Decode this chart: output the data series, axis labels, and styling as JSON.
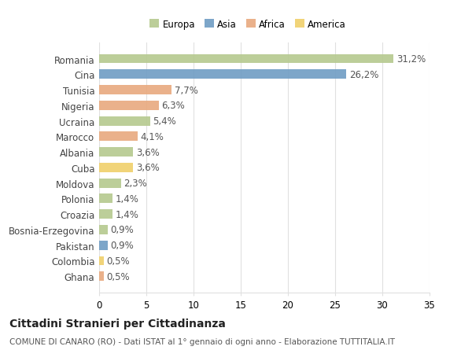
{
  "categories": [
    "Romania",
    "Cina",
    "Tunisia",
    "Nigeria",
    "Ucraina",
    "Marocco",
    "Albania",
    "Cuba",
    "Moldova",
    "Polonia",
    "Croazia",
    "Bosnia-Erzegovina",
    "Pakistan",
    "Colombia",
    "Ghana"
  ],
  "values": [
    31.2,
    26.2,
    7.7,
    6.3,
    5.4,
    4.1,
    3.6,
    3.6,
    2.3,
    1.4,
    1.4,
    0.9,
    0.9,
    0.5,
    0.5
  ],
  "labels": [
    "31,2%",
    "26,2%",
    "7,7%",
    "6,3%",
    "5,4%",
    "4,1%",
    "3,6%",
    "3,6%",
    "2,3%",
    "1,4%",
    "1,4%",
    "0,9%",
    "0,9%",
    "0,5%",
    "0,5%"
  ],
  "colors": [
    "#b5c98e",
    "#6f9dc4",
    "#e8a97e",
    "#e8a97e",
    "#b5c98e",
    "#e8a97e",
    "#b5c98e",
    "#f0d06a",
    "#b5c98e",
    "#b5c98e",
    "#b5c98e",
    "#b5c98e",
    "#6f9dc4",
    "#f0d06a",
    "#e8a97e"
  ],
  "legend_labels": [
    "Europa",
    "Asia",
    "Africa",
    "America"
  ],
  "legend_colors": [
    "#b5c98e",
    "#6f9dc4",
    "#e8a97e",
    "#f0d06a"
  ],
  "xlim": [
    0,
    35
  ],
  "xticks": [
    0,
    5,
    10,
    15,
    20,
    25,
    30,
    35
  ],
  "title": "Cittadini Stranieri per Cittadinanza",
  "subtitle": "COMUNE DI CANARO (RO) - Dati ISTAT al 1° gennaio di ogni anno - Elaborazione TUTTITALIA.IT",
  "background_color": "#ffffff",
  "plot_bg_color": "#ffffff",
  "grid_color": "#e0e0e0",
  "bar_height": 0.6,
  "label_fontsize": 8.5,
  "tick_fontsize": 8.5,
  "title_fontsize": 10,
  "subtitle_fontsize": 7.5
}
